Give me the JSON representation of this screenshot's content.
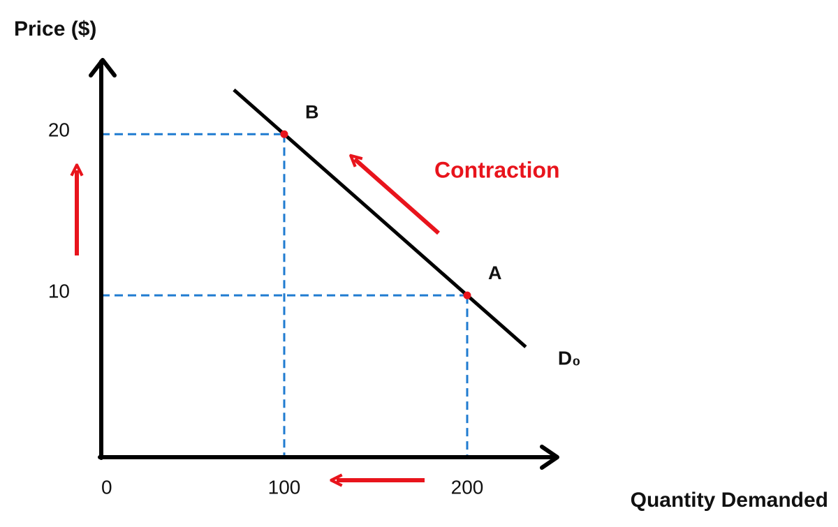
{
  "chart_data": {
    "type": "line",
    "y_label": "Price ($)",
    "x_label": "Quantity Demanded",
    "annotation": "Contraction",
    "xlim": [
      0,
      250
    ],
    "ylim": [
      0,
      24.6
    ],
    "xticks": [
      0,
      100,
      200
    ],
    "yticks": [
      10,
      20
    ],
    "series": [
      {
        "name": "D₀",
        "color": "#000000",
        "x": [
          72.5,
          100,
          200,
          232
        ],
        "values": [
          22.75,
          20,
          10,
          6.8
        ]
      }
    ],
    "points": [
      {
        "label": "B",
        "x": 100,
        "y": 20,
        "color": "#e8141c"
      },
      {
        "label": "A",
        "x": 200,
        "y": 10,
        "color": "#e8141c"
      }
    ],
    "guide_color": "#1f7bd0"
  }
}
